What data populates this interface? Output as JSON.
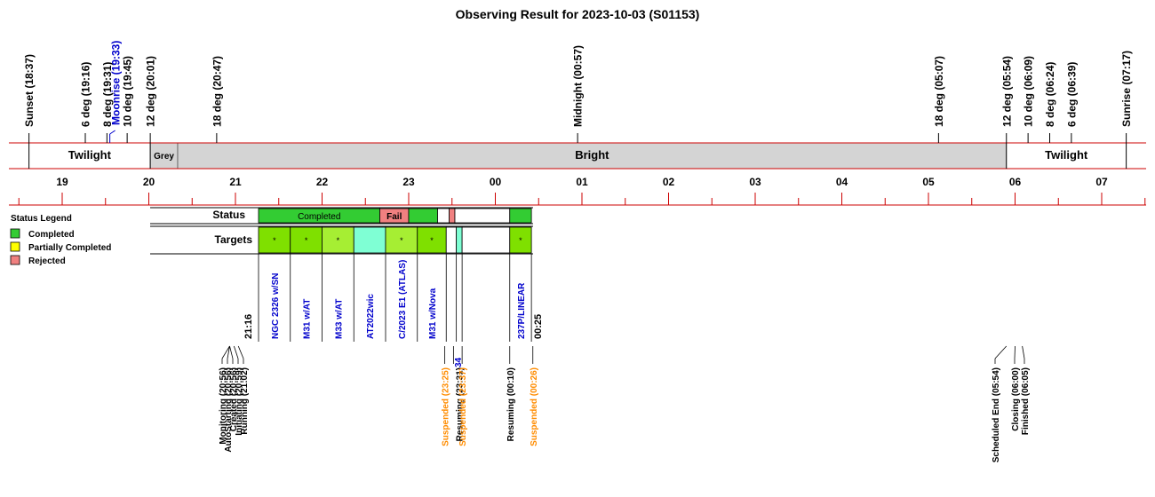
{
  "chart_data": {
    "type": "timeline",
    "title": "Observing Result for 2023-10-03 (S01153)",
    "events_top": [
      {
        "label": "Sunset (18:37)",
        "time": "18:37",
        "color": "#000000"
      },
      {
        "label": "6 deg (19:16)",
        "time": "19:16",
        "color": "#000000"
      },
      {
        "label": "8 deg (19:31)",
        "time": "19:31",
        "color": "#000000"
      },
      {
        "label": "Moonrise (19:33)",
        "time": "19:33",
        "color": "#0000cc"
      },
      {
        "label": "10 deg (19:45)",
        "time": "19:45",
        "color": "#000000"
      },
      {
        "label": "12 deg (20:01)",
        "time": "20:01",
        "color": "#000000"
      },
      {
        "label": "18 deg (20:47)",
        "time": "20:47",
        "color": "#000000"
      },
      {
        "label": "Midnight (00:57)",
        "time": "24:57",
        "color": "#000000"
      },
      {
        "label": "18 deg (05:07)",
        "time": "29:07",
        "color": "#000000"
      },
      {
        "label": "12 deg (05:54)",
        "time": "29:54",
        "color": "#000000"
      },
      {
        "label": "10 deg (06:09)",
        "time": "30:09",
        "color": "#000000"
      },
      {
        "label": "8 deg (06:24)",
        "time": "30:24",
        "color": "#000000"
      },
      {
        "label": "6 deg (06:39)",
        "time": "30:39",
        "color": "#000000"
      },
      {
        "label": "Sunrise (07:17)",
        "time": "31:17",
        "color": "#000000"
      }
    ],
    "sky_bands": [
      {
        "label": "Twilight",
        "start": "18:37",
        "end": "20:01",
        "fill": "#ffffff"
      },
      {
        "label": "Grey",
        "start": "20:01",
        "end": "20:20",
        "fill": "#d4d4d4"
      },
      {
        "label": "Bright",
        "start": "20:20",
        "end": "29:54",
        "fill": "#d4d4d4"
      },
      {
        "label": "Twilight",
        "start": "29:54",
        "end": "31:17",
        "fill": "#ffffff"
      }
    ],
    "hour_ticks": [
      "19",
      "20",
      "21",
      "22",
      "23",
      "00",
      "01",
      "02",
      "03",
      "04",
      "05",
      "06",
      "07"
    ],
    "status_label": "Status",
    "targets_label": "Targets",
    "status_segments": [
      {
        "label": "Completed",
        "start": "21:16",
        "end": "22:40",
        "fill": "#33cc33"
      },
      {
        "label": "Fail",
        "start": "22:40",
        "end": "23:00",
        "fill": "#f08080"
      },
      {
        "label": "",
        "start": "23:00",
        "end": "23:20",
        "fill": "#33cc33"
      },
      {
        "label": "",
        "start": "23:20",
        "end": "23:28",
        "fill": "#ffffff"
      },
      {
        "label": "",
        "start": "23:28",
        "end": "23:32",
        "fill": "#f08080"
      },
      {
        "label": "",
        "start": "23:32",
        "end": "24:10",
        "fill": "#ffffff"
      },
      {
        "label": "",
        "start": "24:10",
        "end": "24:25",
        "fill": "#33cc33"
      }
    ],
    "target_segments": [
      {
        "name": "NGC 2326 w/SN",
        "start": "21:16",
        "end": "21:38",
        "fill": "#7fe000",
        "mark": "*"
      },
      {
        "name": "M31 w/AT",
        "start": "21:38",
        "end": "22:00",
        "fill": "#7fe000",
        "mark": "*"
      },
      {
        "name": "M33 w/AT",
        "start": "22:00",
        "end": "22:22",
        "fill": "#a6ee33",
        "mark": "*"
      },
      {
        "name": "AT2022wic",
        "start": "22:22",
        "end": "22:44",
        "fill": "#7fffd4",
        "mark": ""
      },
      {
        "name": "C/2023 E1 (ATLAS)",
        "start": "22:44",
        "end": "23:06",
        "fill": "#a6ee33",
        "mark": "*"
      },
      {
        "name": "M31 w/Nova",
        "start": "23:06",
        "end": "23:26",
        "fill": "#7fe000",
        "mark": "*"
      },
      {
        "name": "",
        "start": "23:26",
        "end": "23:33",
        "fill": "#ffffff",
        "mark": ""
      },
      {
        "name": "",
        "start": "23:33",
        "end": "23:37",
        "fill": "#7fffd4",
        "mark": ""
      },
      {
        "name": "",
        "start": "23:37",
        "end": "24:10",
        "fill": "#ffffff",
        "mark": ""
      },
      {
        "name": "237P/LINEAR",
        "start": "24:10",
        "end": "24:25",
        "fill": "#7fe000",
        "mark": "*"
      }
    ],
    "run_start_label": "21:16",
    "run_end_label": "00:25",
    "small_labels": [
      "34"
    ],
    "events_bottom": [
      {
        "label": "Monitoring (20:56)",
        "time": "20:56",
        "color": "#000000"
      },
      {
        "label": "AutoStarting (20:56)",
        "time": "20:56",
        "color": "#000000"
      },
      {
        "label": "Created (20:56)",
        "time": "20:56",
        "color": "#000000"
      },
      {
        "label": "Initiating (20:59)",
        "time": "20:59",
        "color": "#000000"
      },
      {
        "label": "Running (21:02)",
        "time": "21:02",
        "color": "#000000"
      },
      {
        "label": "Suspended (23:25)",
        "time": "23:25",
        "color": "#ff8c00"
      },
      {
        "label": "Resuming (23:31)",
        "time": "23:31",
        "color": "#000000"
      },
      {
        "label": "Suspended (23:37)",
        "time": "23:37",
        "color": "#ff8c00"
      },
      {
        "label": "Resuming (00:10)",
        "time": "24:10",
        "color": "#000000"
      },
      {
        "label": "Suspended (00:26)",
        "time": "24:26",
        "color": "#ff8c00"
      },
      {
        "label": "Scheduled End (05:54)",
        "time": "29:54",
        "color": "#000000"
      },
      {
        "label": "Closing (06:00)",
        "time": "30:00",
        "color": "#000000"
      },
      {
        "label": "Finished (06:05)",
        "time": "30:05",
        "color": "#000000"
      }
    ],
    "legend": {
      "title": "Status Legend",
      "items": [
        {
          "label": "Completed",
          "color": "#33cc33"
        },
        {
          "label": "Partially Completed",
          "color": "#ffff00"
        },
        {
          "label": "Rejected",
          "color": "#f08080"
        }
      ]
    }
  }
}
